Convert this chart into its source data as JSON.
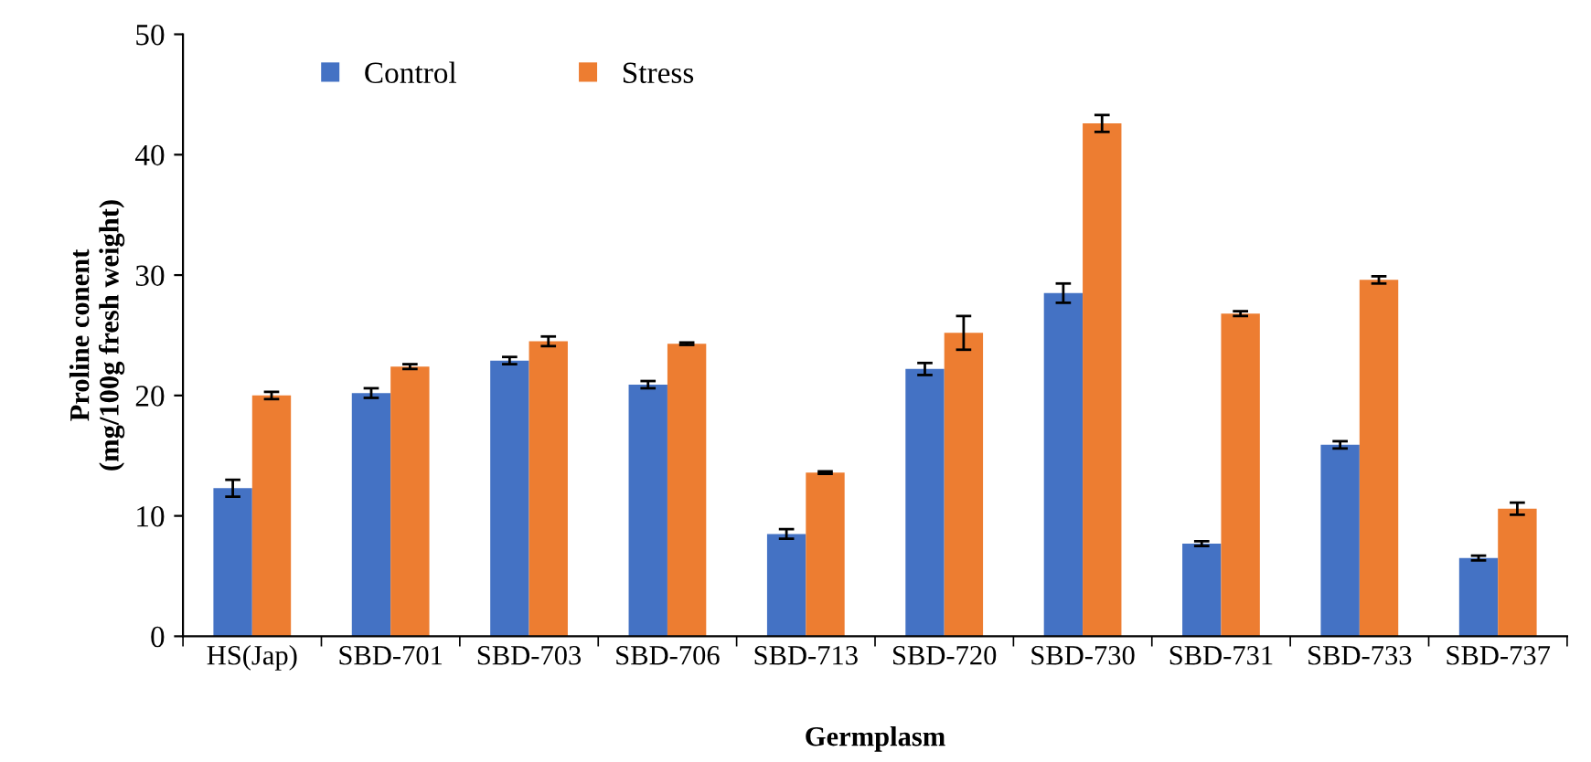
{
  "chart_data": {
    "type": "bar",
    "xlabel": "Germplasm",
    "ylabel": "Proline conent\n(mg/100g fresh weight)",
    "categories": [
      "HS(Jap)",
      "SBD-701",
      "SBD-703",
      "SBD-706",
      "SBD-713",
      "SBD-720",
      "SBD-730",
      "SBD-731",
      "SBD-733",
      "SBD-737"
    ],
    "series": [
      {
        "name": "Control",
        "color": "#4472c4",
        "values": [
          12.3,
          20.2,
          22.9,
          20.9,
          8.5,
          22.2,
          28.5,
          7.7,
          15.9,
          6.5
        ],
        "errors": [
          0.7,
          0.4,
          0.3,
          0.3,
          0.4,
          0.5,
          0.8,
          0.2,
          0.3,
          0.2
        ]
      },
      {
        "name": "Stress",
        "color": "#ed7d31",
        "values": [
          20.0,
          22.4,
          24.5,
          24.3,
          13.6,
          25.2,
          42.6,
          26.8,
          29.6,
          10.6
        ],
        "errors": [
          0.3,
          0.2,
          0.4,
          0.1,
          0.1,
          1.4,
          0.7,
          0.2,
          0.3,
          0.5
        ]
      }
    ],
    "ylim": [
      0,
      50
    ],
    "yticks": [
      0,
      10,
      20,
      30,
      40,
      50
    ],
    "grid": false,
    "legend": "top left"
  }
}
